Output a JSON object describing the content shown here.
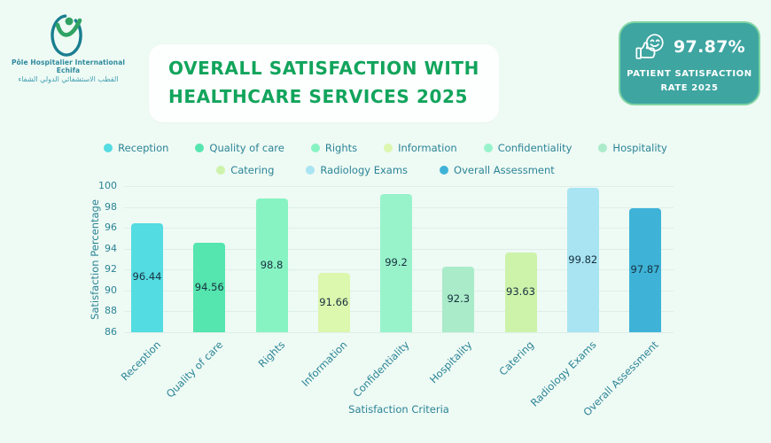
{
  "page": {
    "background": "#EEFAF4"
  },
  "logo": {
    "icon": "hospital-logo",
    "name_fr": "Pôle Hospitalier International Echifa",
    "name_ar": "القطب الاستشفائي الدولي الشفاء"
  },
  "header": {
    "title_line1": "OVERALL SATISFACTION WITH",
    "title_line2": "HEALTHCARE SERVICES 2025",
    "title_color": "#12A45C"
  },
  "badge": {
    "icon": "thumbs-up-smiley",
    "value": "97.87%",
    "label_line1": "PATIENT SATISFACTION",
    "label_line2": "RATE 2025",
    "background": "#3EA5A1",
    "border_color": "#7FD4A2"
  },
  "chart_data": {
    "type": "bar",
    "title": "",
    "xlabel": "Satisfaction Criteria",
    "ylabel": "Satisfaction Percentage",
    "ylim": [
      86,
      100
    ],
    "yticks": [
      86,
      88,
      90,
      92,
      94,
      96,
      98,
      100
    ],
    "grid": true,
    "legend_position": "top",
    "legend_rows": [
      6,
      3
    ],
    "categories": [
      "Reception",
      "Quality of care",
      "Rights",
      "Information",
      "Confidentiality",
      "Hospitality",
      "Catering",
      "Radiology Exams",
      "Overall Assessment"
    ],
    "values": [
      96.44,
      94.56,
      98.8,
      91.66,
      99.2,
      92.3,
      93.63,
      99.82,
      97.87
    ],
    "value_labels": [
      "96.44",
      "94.56",
      "98.8",
      "91.66",
      "99.2",
      "92.3",
      "93.63",
      "99.82",
      "97.87"
    ],
    "colors": [
      "#53DCE1",
      "#55E5AE",
      "#87F3C3",
      "#DCF7AE",
      "#98F3CB",
      "#AAEBC9",
      "#CDF3AB",
      "#A9E4F2",
      "#3EB3D7"
    ],
    "text_color": "#2B8496",
    "grid_color": "#DDEFEA"
  }
}
